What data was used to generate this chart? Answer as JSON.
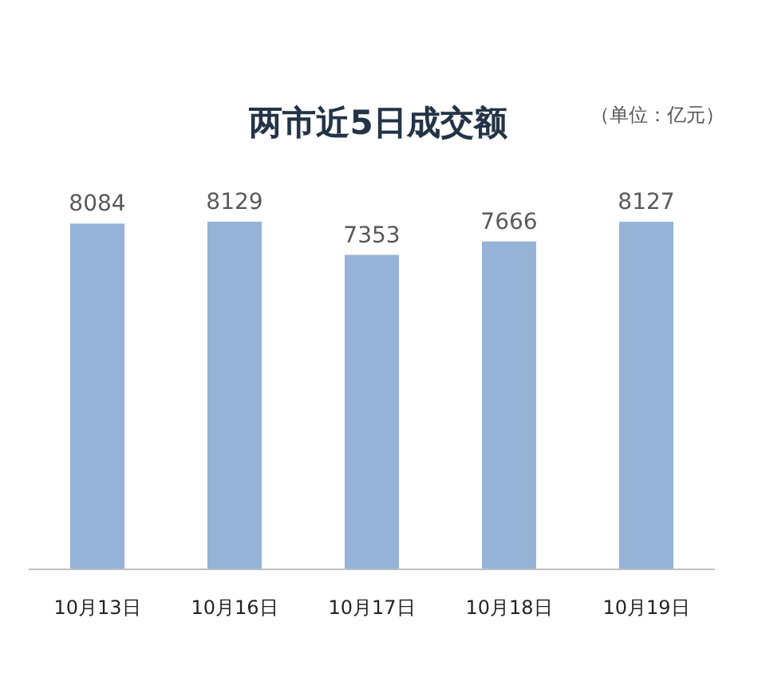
{
  "chart_data": {
    "type": "bar",
    "title": "两市近5日成交额",
    "annotations": [
      "（单位：亿元）"
    ],
    "categories": [
      "10月13日",
      "10月16日",
      "10月17日",
      "10月18日",
      "10月19日"
    ],
    "series": [
      {
        "color": "#95b3d7",
        "values": [
          8084,
          8129,
          7353,
          7666,
          8127
        ]
      }
    ],
    "data_labels": true
  }
}
